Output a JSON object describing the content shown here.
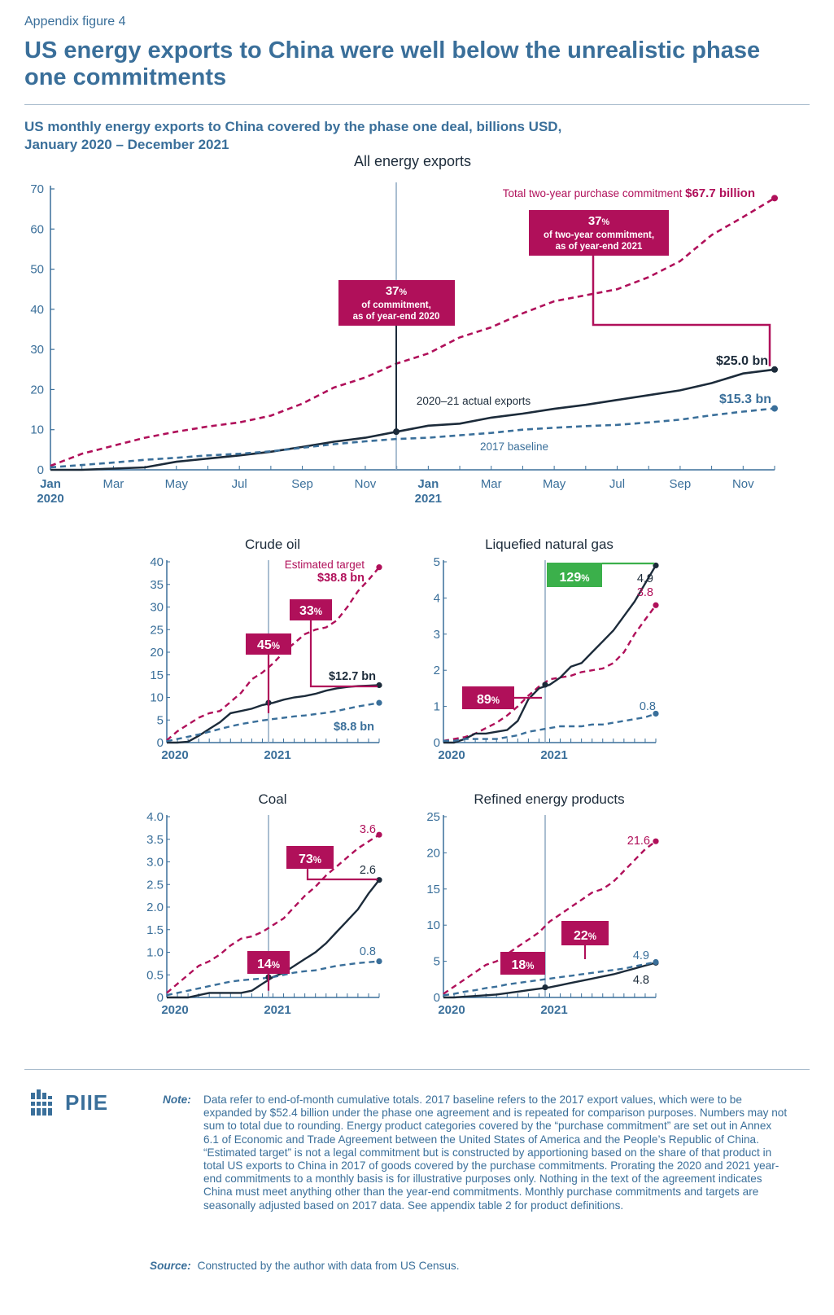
{
  "header": {
    "eyebrow": "Appendix figure 4",
    "title": "US energy exports to China were well below the unrealistic phase one commitments",
    "subtitle_line1": "US monthly energy exports to China covered by the phase one deal, billions USD,",
    "subtitle_line2": "January 2020 – December 2021"
  },
  "colors": {
    "commitment": "#b0105a",
    "actual": "#1c2b3a",
    "baseline": "#3a6f9a",
    "axis": "#3a6f9a",
    "green": "#3bb04b"
  },
  "chart_data": [
    {
      "id": "main",
      "type": "line",
      "title": "All energy exports",
      "ylim": [
        0,
        70
      ],
      "y_ticks": [
        "0",
        "10",
        "20",
        "30",
        "40",
        "50",
        "60",
        "70"
      ],
      "x_ticks": [
        {
          "i": 0,
          "label": "Jan",
          "year": "2020"
        },
        {
          "i": 2,
          "label": "Mar"
        },
        {
          "i": 4,
          "label": "May"
        },
        {
          "i": 6,
          "label": "Jul"
        },
        {
          "i": 8,
          "label": "Sep"
        },
        {
          "i": 10,
          "label": "Nov"
        },
        {
          "i": 12,
          "label": "Jan",
          "year": "2021"
        },
        {
          "i": 14,
          "label": "Mar"
        },
        {
          "i": 16,
          "label": "May"
        },
        {
          "i": 18,
          "label": "Jul"
        },
        {
          "i": 20,
          "label": "Sep"
        },
        {
          "i": 22,
          "label": "Nov"
        }
      ],
      "series": [
        {
          "name": "Total two-year purchase commitment",
          "style": "dashed",
          "color": "commitment",
          "values": [
            1.0,
            4.0,
            6.0,
            8.0,
            9.5,
            10.8,
            11.8,
            13.5,
            16.5,
            20.5,
            23.0,
            26.5,
            29.0,
            33.0,
            35.5,
            39.0,
            42.0,
            43.5,
            45.0,
            48.0,
            52.0,
            58.5,
            63.0,
            67.7
          ]
        },
        {
          "name": "2020–21 actual exports",
          "style": "solid",
          "color": "actual",
          "values": [
            0.0,
            0.0,
            0.3,
            0.6,
            2.0,
            2.8,
            3.6,
            4.5,
            5.7,
            7.0,
            8.0,
            9.5,
            11.0,
            11.5,
            13.0,
            14.0,
            15.2,
            16.2,
            17.4,
            18.6,
            19.8,
            21.6,
            24.0,
            25.0
          ]
        },
        {
          "name": "2017 baseline",
          "style": "dashed",
          "color": "baseline",
          "values": [
            0.6,
            1.2,
            1.8,
            2.5,
            3.0,
            3.6,
            4.0,
            4.6,
            5.5,
            6.4,
            7.1,
            7.7,
            8.0,
            8.6,
            9.2,
            10.0,
            10.5,
            10.9,
            11.2,
            11.8,
            12.5,
            13.6,
            14.5,
            15.3
          ]
        }
      ],
      "labels": {
        "commitment": "Total two-year purchase commitment",
        "commitment_value": "$67.7 billion",
        "actual": "2020–21 actual exports",
        "actual_value": "$25.0 bn",
        "baseline": "2017 baseline",
        "baseline_value": "$15.3 bn"
      },
      "callouts": [
        {
          "pct": "37",
          "unit": "%",
          "line1": "of commitment,",
          "line2": "as of year-end 2020"
        },
        {
          "pct": "37",
          "unit": "%",
          "line1": "of two-year commitment,",
          "line2": "as of year-end 2021"
        }
      ]
    },
    {
      "id": "crude",
      "type": "line",
      "title": "Crude oil",
      "ylim": [
        0,
        40
      ],
      "y_ticks": [
        "0",
        "5",
        "10",
        "15",
        "20",
        "25",
        "30",
        "35",
        "40"
      ],
      "x_ticks": [
        "2020",
        "2021"
      ],
      "series": [
        {
          "name": "Estimated target",
          "style": "dashed",
          "color": "commitment",
          "values": [
            0.5,
            2.5,
            4.0,
            5.5,
            6.5,
            7.0,
            9.0,
            11.0,
            14.0,
            15.5,
            17.5,
            20.0,
            22.0,
            24.0,
            25.0,
            25.5,
            27.0,
            30.0,
            33.5,
            36.0,
            38.8
          ]
        },
        {
          "name": "Actual",
          "style": "solid",
          "color": "actual",
          "values": [
            0.0,
            0.0,
            0.2,
            1.5,
            3.0,
            4.5,
            6.5,
            7.0,
            7.5,
            8.3,
            8.8,
            9.5,
            10.0,
            10.3,
            10.8,
            11.5,
            12.0,
            12.3,
            12.5,
            12.6,
            12.7
          ]
        },
        {
          "name": "Baseline",
          "style": "dashed",
          "color": "baseline",
          "values": [
            0.3,
            0.8,
            1.3,
            1.8,
            2.4,
            3.0,
            3.6,
            4.1,
            4.5,
            4.9,
            5.2,
            5.5,
            5.8,
            6.0,
            6.3,
            6.6,
            7.0,
            7.5,
            8.0,
            8.4,
            8.8
          ]
        }
      ],
      "labels": {
        "target_title": "Estimated target",
        "target_value": "$38.8 bn",
        "actual_value": "$12.7 bn",
        "baseline_value": "$8.8 bn"
      },
      "badges": [
        {
          "pct": "45",
          "unit": "%"
        },
        {
          "pct": "33",
          "unit": "%"
        }
      ]
    },
    {
      "id": "lng",
      "type": "line",
      "title": "Liquefied natural gas",
      "ylim": [
        0,
        5
      ],
      "y_ticks": [
        "0",
        "1",
        "2",
        "3",
        "4",
        "5"
      ],
      "x_ticks": [
        "2020",
        "2021"
      ],
      "series": [
        {
          "name": "Estimated target",
          "style": "dashed",
          "color": "commitment",
          "values": [
            0.05,
            0.1,
            0.15,
            0.25,
            0.4,
            0.55,
            0.75,
            1.0,
            1.3,
            1.55,
            1.75,
            1.8,
            1.85,
            1.95,
            2.0,
            2.05,
            2.2,
            2.5,
            3.0,
            3.4,
            3.8
          ]
        },
        {
          "name": "Actual",
          "style": "solid",
          "color": "actual",
          "values": [
            0.0,
            0.0,
            0.1,
            0.25,
            0.25,
            0.3,
            0.35,
            0.6,
            1.2,
            1.5,
            1.6,
            1.8,
            2.1,
            2.2,
            2.5,
            2.8,
            3.1,
            3.5,
            3.9,
            4.4,
            4.9
          ]
        },
        {
          "name": "Baseline",
          "style": "dashed",
          "color": "baseline",
          "values": [
            0.05,
            0.05,
            0.1,
            0.1,
            0.1,
            0.1,
            0.15,
            0.2,
            0.3,
            0.35,
            0.4,
            0.45,
            0.45,
            0.45,
            0.5,
            0.5,
            0.55,
            0.6,
            0.65,
            0.7,
            0.8
          ]
        }
      ],
      "labels": {
        "actual_value": "4.9",
        "target_value": "3.8",
        "baseline_value": "0.8"
      },
      "badges": [
        {
          "pct": "129",
          "unit": "%"
        },
        {
          "pct": "89",
          "unit": "%"
        }
      ]
    },
    {
      "id": "coal",
      "type": "line",
      "title": "Coal",
      "ylim": [
        0,
        4.0
      ],
      "y_ticks": [
        "0",
        "0.5",
        "1.0",
        "1.5",
        "2.0",
        "2.5",
        "3.0",
        "3.5",
        "4.0"
      ],
      "x_ticks": [
        "2020",
        "2021"
      ],
      "series": [
        {
          "name": "Estimated target",
          "style": "dashed",
          "color": "commitment",
          "values": [
            0.1,
            0.3,
            0.5,
            0.7,
            0.8,
            0.95,
            1.15,
            1.3,
            1.35,
            1.45,
            1.6,
            1.75,
            2.0,
            2.25,
            2.45,
            2.7,
            2.9,
            3.1,
            3.3,
            3.45,
            3.6
          ]
        },
        {
          "name": "Actual",
          "style": "solid",
          "color": "actual",
          "values": [
            0.0,
            0.0,
            0.0,
            0.05,
            0.1,
            0.1,
            0.1,
            0.1,
            0.15,
            0.3,
            0.45,
            0.55,
            0.7,
            0.85,
            1.0,
            1.2,
            1.45,
            1.7,
            1.95,
            2.3,
            2.6
          ]
        },
        {
          "name": "Baseline",
          "style": "dashed",
          "color": "baseline",
          "values": [
            0.05,
            0.1,
            0.15,
            0.2,
            0.25,
            0.3,
            0.35,
            0.38,
            0.4,
            0.42,
            0.45,
            0.5,
            0.55,
            0.58,
            0.6,
            0.65,
            0.7,
            0.73,
            0.76,
            0.78,
            0.8
          ]
        }
      ],
      "labels": {
        "target_value": "3.6",
        "actual_value": "2.6",
        "baseline_value": "0.8"
      },
      "badges": [
        {
          "pct": "73",
          "unit": "%"
        },
        {
          "pct": "14",
          "unit": "%"
        }
      ]
    },
    {
      "id": "refined",
      "type": "line",
      "title": "Refined energy products",
      "ylim": [
        0,
        25
      ],
      "y_ticks": [
        "0",
        "5",
        "10",
        "15",
        "20",
        "25"
      ],
      "x_ticks": [
        "2020",
        "2021"
      ],
      "series": [
        {
          "name": "Estimated target",
          "style": "dashed",
          "color": "commitment",
          "values": [
            0.5,
            1.5,
            2.5,
            3.5,
            4.5,
            5.0,
            6.0,
            7.0,
            8.0,
            9.0,
            10.5,
            11.5,
            12.5,
            13.5,
            14.5,
            15.0,
            16.0,
            17.5,
            19.0,
            20.5,
            21.6
          ]
        },
        {
          "name": "Actual",
          "style": "solid",
          "color": "actual",
          "values": [
            0.0,
            0.0,
            0.1,
            0.2,
            0.3,
            0.4,
            0.6,
            0.8,
            1.0,
            1.2,
            1.4,
            1.7,
            2.0,
            2.3,
            2.6,
            2.9,
            3.2,
            3.6,
            4.0,
            4.4,
            4.8
          ]
        },
        {
          "name": "Baseline",
          "style": "dashed",
          "color": "baseline",
          "values": [
            0.3,
            0.5,
            0.8,
            1.0,
            1.3,
            1.5,
            1.8,
            2.0,
            2.2,
            2.4,
            2.6,
            2.8,
            3.0,
            3.2,
            3.4,
            3.6,
            3.8,
            4.0,
            4.3,
            4.6,
            4.9
          ]
        }
      ],
      "labels": {
        "baseline_value": "4.9",
        "actual_value": "4.8"
      },
      "badges": [
        {
          "pct": "22",
          "unit": "%"
        },
        {
          "pct": "18",
          "unit": "%"
        }
      ]
    }
  ],
  "footer": {
    "logo_text": "PIIE",
    "note_label": "Note:",
    "note_text": "Data refer to end-of-month cumulative totals. 2017 baseline refers to the 2017 export values, which were to be expanded by $52.4 billion under the phase one agreement and is repeated for comparison purposes. Numbers may not sum to total due to rounding. Energy product categories covered by the “purchase commitment” are set out in Annex 6.1 of Economic and Trade Agreement between the United States of America and the People’s Republic of China. “Estimated target” is not a legal commitment but is constructed by apportioning based on the share of that product in total US exports to China in 2017 of goods covered by the purchase commitments. Prorating the 2020 and 2021 year-end commitments to a monthly basis is for illustrative purposes only. Nothing in the text of the agreement indicates China must meet anything other than the year-end commitments. Monthly purchase commitments and targets are seasonally adjusted based on 2017 data. See appendix table 2 for product definitions.",
    "source_label": "Source:",
    "source_text": "Constructed by the author with data from US Census."
  }
}
